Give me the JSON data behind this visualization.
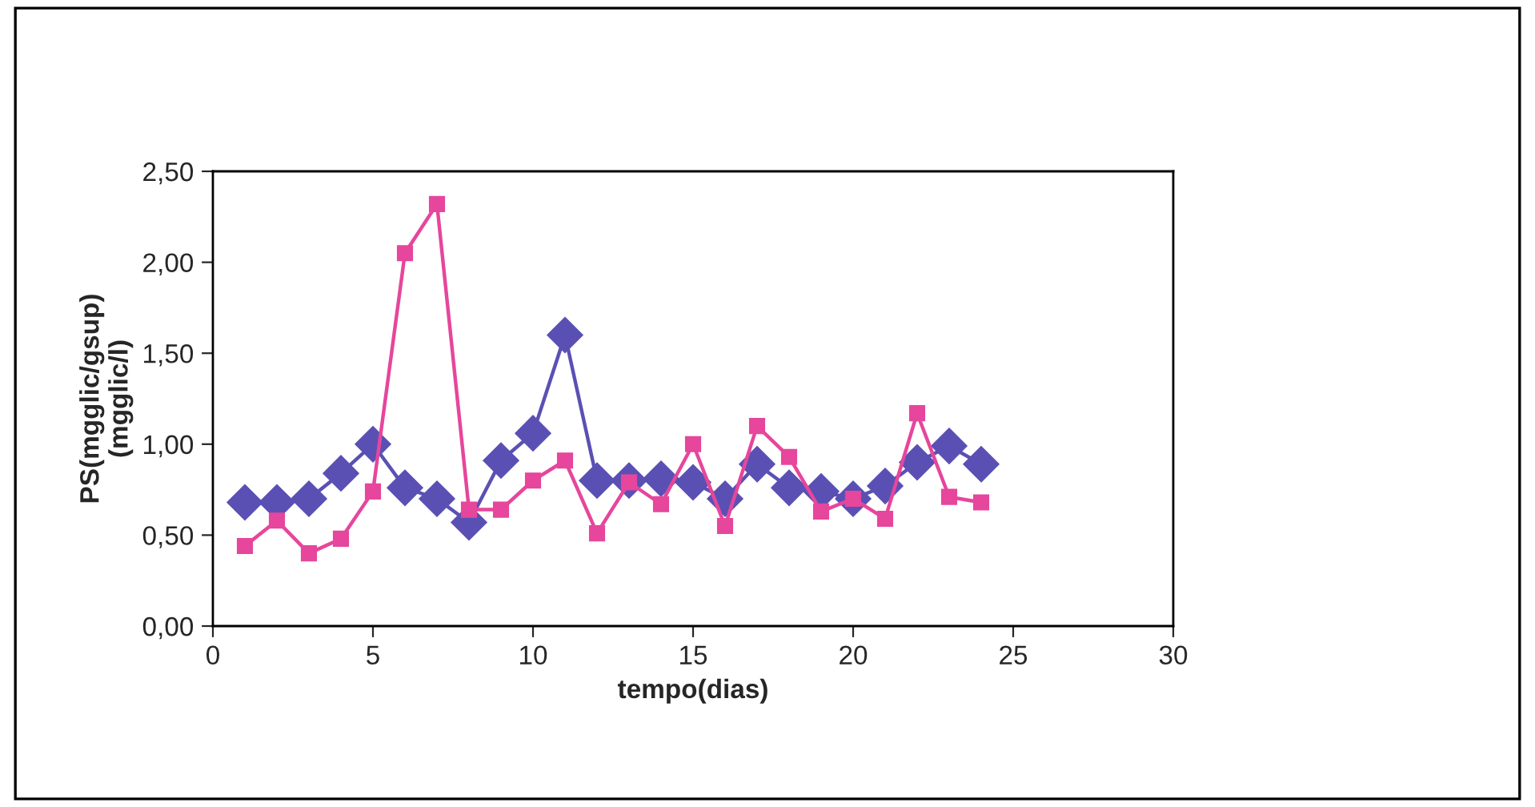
{
  "chart_data": {
    "type": "line",
    "xlabel": "tempo(dias)",
    "ylabel": "PS(mgglic/gsup)\n(mgglic/l)",
    "x": [
      1,
      2,
      3,
      4,
      5,
      6,
      7,
      8,
      9,
      10,
      11,
      12,
      13,
      14,
      15,
      16,
      17,
      18,
      19,
      20,
      21,
      22,
      23,
      24
    ],
    "series": [
      {
        "color": "#5a50b4",
        "marker": "diamond",
        "values": [
          0.68,
          0.68,
          0.7,
          0.84,
          1.0,
          0.76,
          0.7,
          0.57,
          0.91,
          1.06,
          1.6,
          0.8,
          0.8,
          0.81,
          0.79,
          0.7,
          0.89,
          0.76,
          0.74,
          0.7,
          0.77,
          0.9,
          0.99,
          0.89
        ]
      },
      {
        "color": "#e6469b",
        "marker": "square",
        "values": [
          0.44,
          0.58,
          0.4,
          0.48,
          0.74,
          2.05,
          2.32,
          0.64,
          0.64,
          0.8,
          0.91,
          0.51,
          0.79,
          0.67,
          1.0,
          0.55,
          1.1,
          0.93,
          0.63,
          0.7,
          0.59,
          1.17,
          0.71,
          0.68
        ]
      }
    ],
    "xlim": [
      0,
      30
    ],
    "xticks": [
      0,
      5,
      10,
      15,
      20,
      25,
      30
    ],
    "ylim": [
      0,
      2.5
    ],
    "yticks": [
      {
        "value": 0,
        "label": "0,00"
      },
      {
        "value": 0.5,
        "label": "0,50"
      },
      {
        "value": 1.0,
        "label": "1,00"
      },
      {
        "value": 1.5,
        "label": "1,50"
      },
      {
        "value": 2.0,
        "label": "2,00"
      },
      {
        "value": 2.5,
        "label": "2,50"
      }
    ],
    "grid": false,
    "legend": false,
    "line_style": "solid"
  }
}
